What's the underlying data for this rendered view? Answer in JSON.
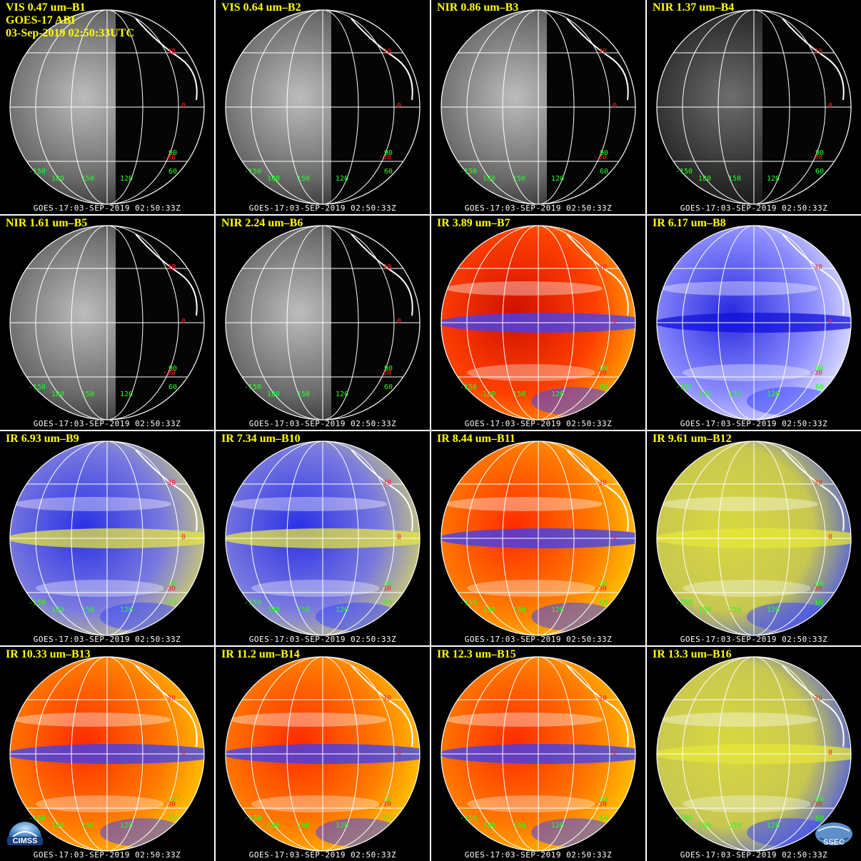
{
  "header_extra": {
    "satellite": "GOES-17 ABI",
    "datetime": "03-Sep-2019 02:50:33UTC"
  },
  "footer_text": "GOES-17:03-SEP-2019 02:50:33Z",
  "lat_labels": [
    "30",
    "0",
    "-30"
  ],
  "lon_labels": [
    "-150",
    "180",
    "150",
    "120",
    "60",
    "90"
  ],
  "panels": [
    {
      "title": "VIS 0.47 um–B1",
      "palette": "gray"
    },
    {
      "title": "VIS 0.64 um–B2",
      "palette": "gray"
    },
    {
      "title": "NIR 0.86 um–B3",
      "palette": "gray"
    },
    {
      "title": "NIR 1.37 um–B4",
      "palette": "graydark"
    },
    {
      "title": "NIR 1.61 um–B5",
      "palette": "gray"
    },
    {
      "title": "NIR 2.24 um–B6",
      "palette": "gray"
    },
    {
      "title": "IR 3.89 um–B7",
      "palette": "red"
    },
    {
      "title": "IR 6.17 um–B8",
      "palette": "wv"
    },
    {
      "title": "IR 6.93 um–B9",
      "palette": "wvyellow"
    },
    {
      "title": "IR 7.34 um–B10",
      "palette": "wvyellow"
    },
    {
      "title": "IR 8.44 um–B11",
      "palette": "redorange"
    },
    {
      "title": "IR 9.61 um–B12",
      "palette": "yellowblue"
    },
    {
      "title": "IR 10.33 um–B13",
      "palette": "redorange"
    },
    {
      "title": "IR 11.2 um–B14",
      "palette": "redorange"
    },
    {
      "title": "IR 12.3 um–B15",
      "palette": "redorange"
    },
    {
      "title": "IR 13.3 um–B16",
      "palette": "yellowblue"
    }
  ],
  "logos": {
    "cimss": "CIMSS",
    "ssec": "SSEC"
  },
  "colors": {
    "title": "#ffff00",
    "footer": "#ffffff",
    "lat_label": "#ff2020",
    "lon_label": "#20ff20",
    "grid_line": "#ffffff"
  }
}
